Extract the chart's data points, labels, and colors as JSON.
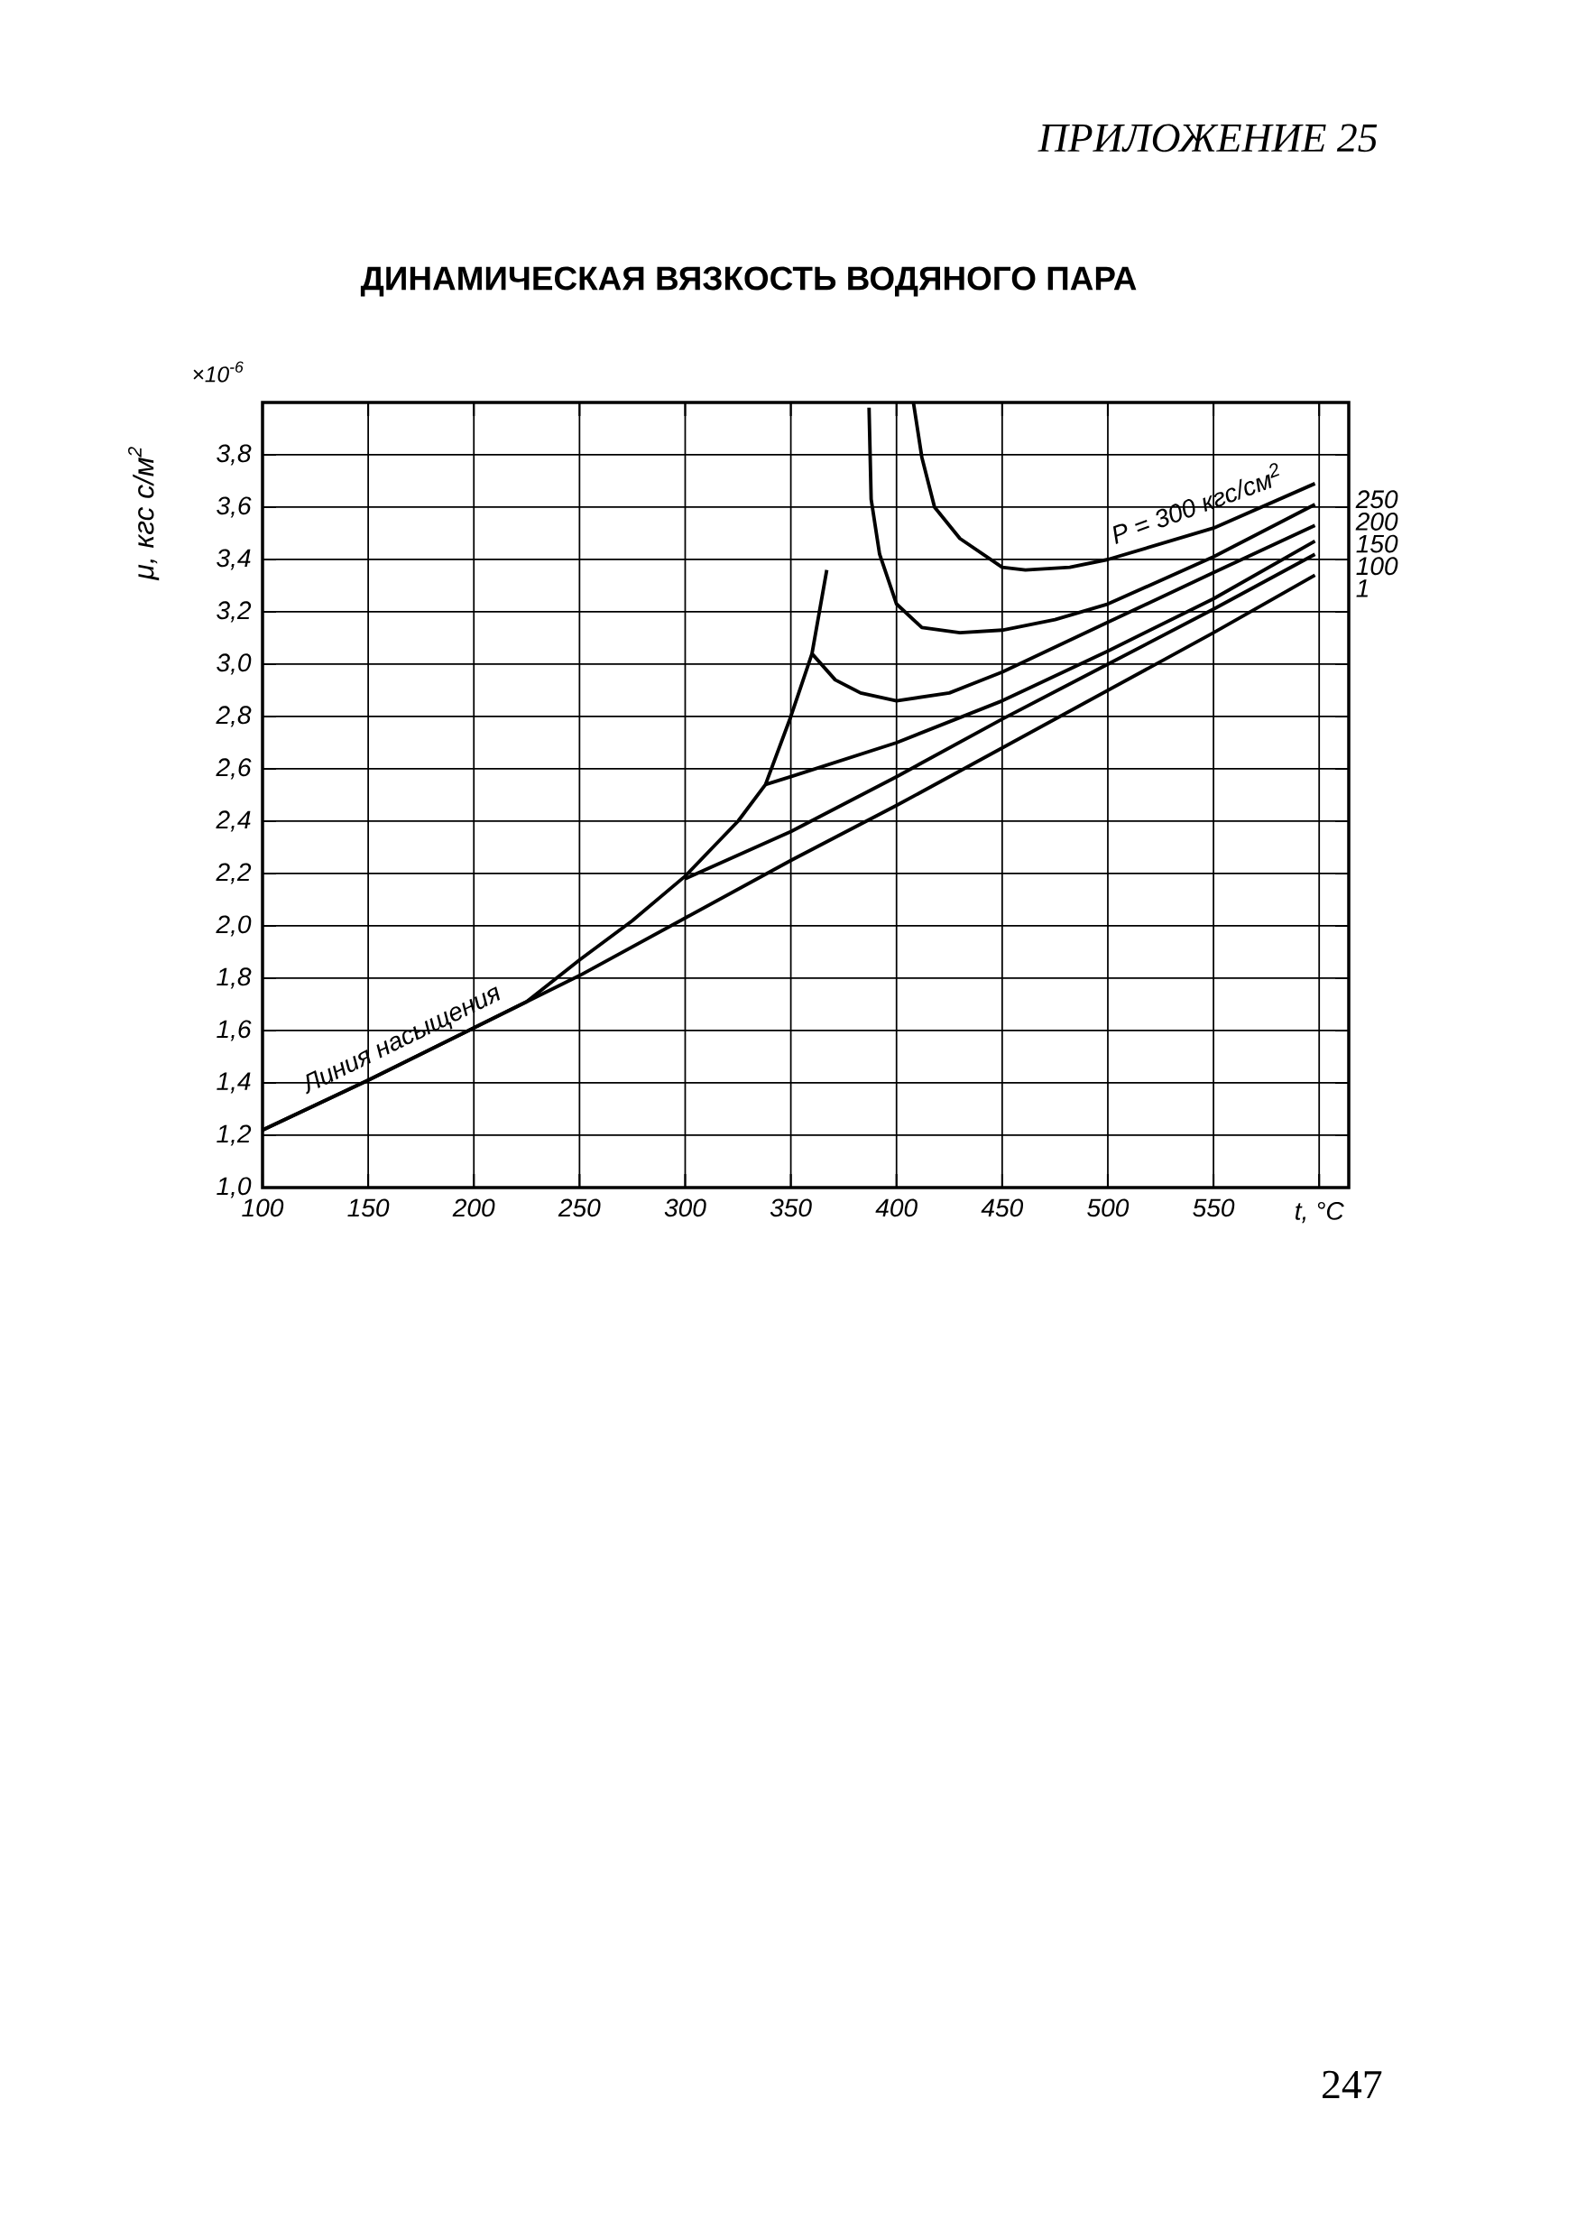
{
  "chart_data": {
    "type": "line",
    "title": "ДИНАМИЧЕСКАЯ ВЯЗКОСТЬ ВОДЯНОГО ПАРА",
    "xlabel": "t, °C",
    "ylabel": "μ, кгс с/м$^{2}$",
    "annotations": [
      "ПРИЛОЖЕНИЕ 25",
      "×10$^{-6}$",
      "247"
    ],
    "series": [
      {
        "name": "Линия насыщения",
        "color": "#000000",
        "x": [
          100,
          150,
          200,
          225,
          250,
          275,
          300,
          325,
          338,
          350,
          360,
          367
        ],
        "values": [
          1.22,
          1.41,
          1.61,
          1.71,
          1.87,
          2.02,
          2.19,
          2.4,
          2.54,
          2.8,
          3.04,
          3.36
        ]
      },
      {
        "name": "1",
        "color": "#000000",
        "x": [
          100,
          150,
          200,
          250,
          300,
          350,
          400,
          450,
          500,
          550,
          598
        ],
        "values": [
          1.22,
          1.41,
          1.61,
          1.81,
          2.03,
          2.25,
          2.46,
          2.68,
          2.9,
          3.12,
          3.34
        ]
      },
      {
        "name": "100",
        "color": "#000000",
        "x": [
          300,
          350,
          400,
          450,
          500,
          550,
          598
        ],
        "values": [
          2.18,
          2.36,
          2.57,
          2.79,
          3.0,
          3.21,
          3.42
        ]
      },
      {
        "name": "150",
        "color": "#000000",
        "x": [
          338,
          350,
          400,
          450,
          500,
          550,
          598
        ],
        "values": [
          2.54,
          2.57,
          2.7,
          2.86,
          3.05,
          3.25,
          3.47
        ]
      },
      {
        "name": "200",
        "color": "#000000",
        "x": [
          360,
          371,
          383,
          400,
          425,
          450,
          500,
          550,
          598
        ],
        "values": [
          3.04,
          2.94,
          2.89,
          2.86,
          2.89,
          2.97,
          3.16,
          3.35,
          3.53
        ]
      },
      {
        "name": "250",
        "color": "#000000",
        "x": [
          387,
          388,
          392,
          400,
          412,
          430,
          450,
          475,
          500,
          550,
          598
        ],
        "values": [
          3.98,
          3.63,
          3.42,
          3.23,
          3.14,
          3.12,
          3.13,
          3.17,
          3.23,
          3.41,
          3.61
        ]
      },
      {
        "name": "P = 300 кгс/см$^{2}$",
        "color": "#000000",
        "x": [
          408,
          412,
          418,
          430,
          450,
          461,
          482,
          500,
          550,
          598
        ],
        "values": [
          4.0,
          3.79,
          3.6,
          3.48,
          3.37,
          3.36,
          3.37,
          3.4,
          3.52,
          3.69
        ]
      }
    ],
    "xlim": [
      100,
      614
    ],
    "ylim": [
      1.0,
      4.0
    ],
    "xticks": [
      100,
      150,
      200,
      250,
      300,
      350,
      400,
      450,
      500,
      550,
      {
        "value": 600,
        "label": null
      }
    ],
    "yticks": [
      {
        "value": 1.0,
        "label": "1,0"
      },
      {
        "value": 1.2,
        "label": "1,2"
      },
      {
        "value": 1.4,
        "label": "1,4"
      },
      {
        "value": 1.6,
        "label": "1,6"
      },
      {
        "value": 1.8,
        "label": "1,8"
      },
      {
        "value": 2.0,
        "label": "2,0"
      },
      {
        "value": 2.2,
        "label": "2,2"
      },
      {
        "value": 2.4,
        "label": "2,4"
      },
      {
        "value": 2.6,
        "label": "2,6"
      },
      {
        "value": 2.8,
        "label": "2,8"
      },
      {
        "value": 3.0,
        "label": "3,0"
      },
      {
        "value": 3.2,
        "label": "3,2"
      },
      {
        "value": 3.4,
        "label": "3,4"
      },
      {
        "value": 3.6,
        "label": "3,6"
      },
      {
        "value": 3.8,
        "label": "3,8"
      }
    ],
    "grid": true,
    "legend": "right"
  }
}
